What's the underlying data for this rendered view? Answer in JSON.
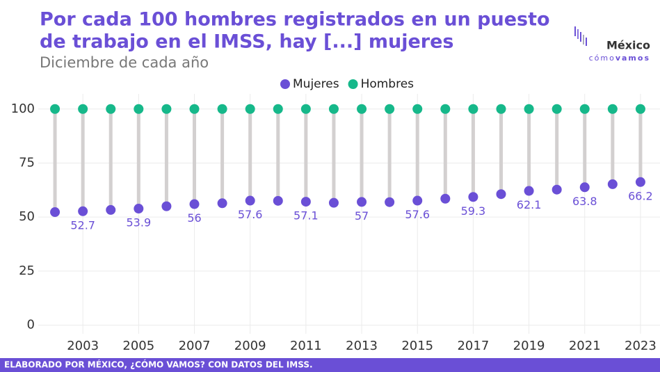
{
  "chart_data": {
    "type": "dumbbell",
    "title": [
      "Por cada 100 hombres registrados en un puesto",
      "de trabajo en el IMSS, hay [...] mujeres"
    ],
    "subtitle": "Diciembre de cada año",
    "x": [
      2002,
      2003,
      2004,
      2005,
      2006,
      2007,
      2008,
      2009,
      2010,
      2011,
      2012,
      2013,
      2014,
      2015,
      2016,
      2017,
      2018,
      2019,
      2020,
      2021,
      2022,
      2023
    ],
    "series": [
      {
        "name": "Mujeres",
        "color": "#6a4fd6",
        "values": [
          52.3,
          52.7,
          53.3,
          53.9,
          55,
          56,
          56.4,
          57.6,
          57.5,
          57.1,
          56.6,
          57,
          56.9,
          57.6,
          58.5,
          59.3,
          60.6,
          62.1,
          62.7,
          63.8,
          65.2,
          66.2
        ],
        "value_labels": [
          null,
          "52.7",
          null,
          "53.9",
          null,
          "56",
          null,
          "57.6",
          null,
          "57.1",
          null,
          "57",
          null,
          "57.6",
          null,
          "59.3",
          null,
          "62.1",
          null,
          "63.8",
          null,
          "66.2"
        ]
      },
      {
        "name": "Hombres",
        "color": "#16b88a",
        "values": [
          100,
          100,
          100,
          100,
          100,
          100,
          100,
          100,
          100,
          100,
          100,
          100,
          100,
          100,
          100,
          100,
          100,
          100,
          100,
          100,
          100,
          100
        ]
      }
    ],
    "connector_color": "#d3d0d0",
    "xlim": [
      2001.4,
      2023.7
    ],
    "xticks": [
      2003,
      2005,
      2007,
      2009,
      2011,
      2013,
      2015,
      2017,
      2019,
      2021,
      2023
    ],
    "ylim": [
      -4,
      107
    ],
    "yticks": [
      0,
      25,
      50,
      75,
      100
    ],
    "grid": true,
    "legend": "top",
    "footer": "ELABORADO POR MÉXICO, ¿CÓMO VAMOS? CON DATOS DEL IMSS."
  },
  "logo": {
    "name": "México",
    "tagline_light": "cómo",
    "tagline_bold": "vamos"
  }
}
